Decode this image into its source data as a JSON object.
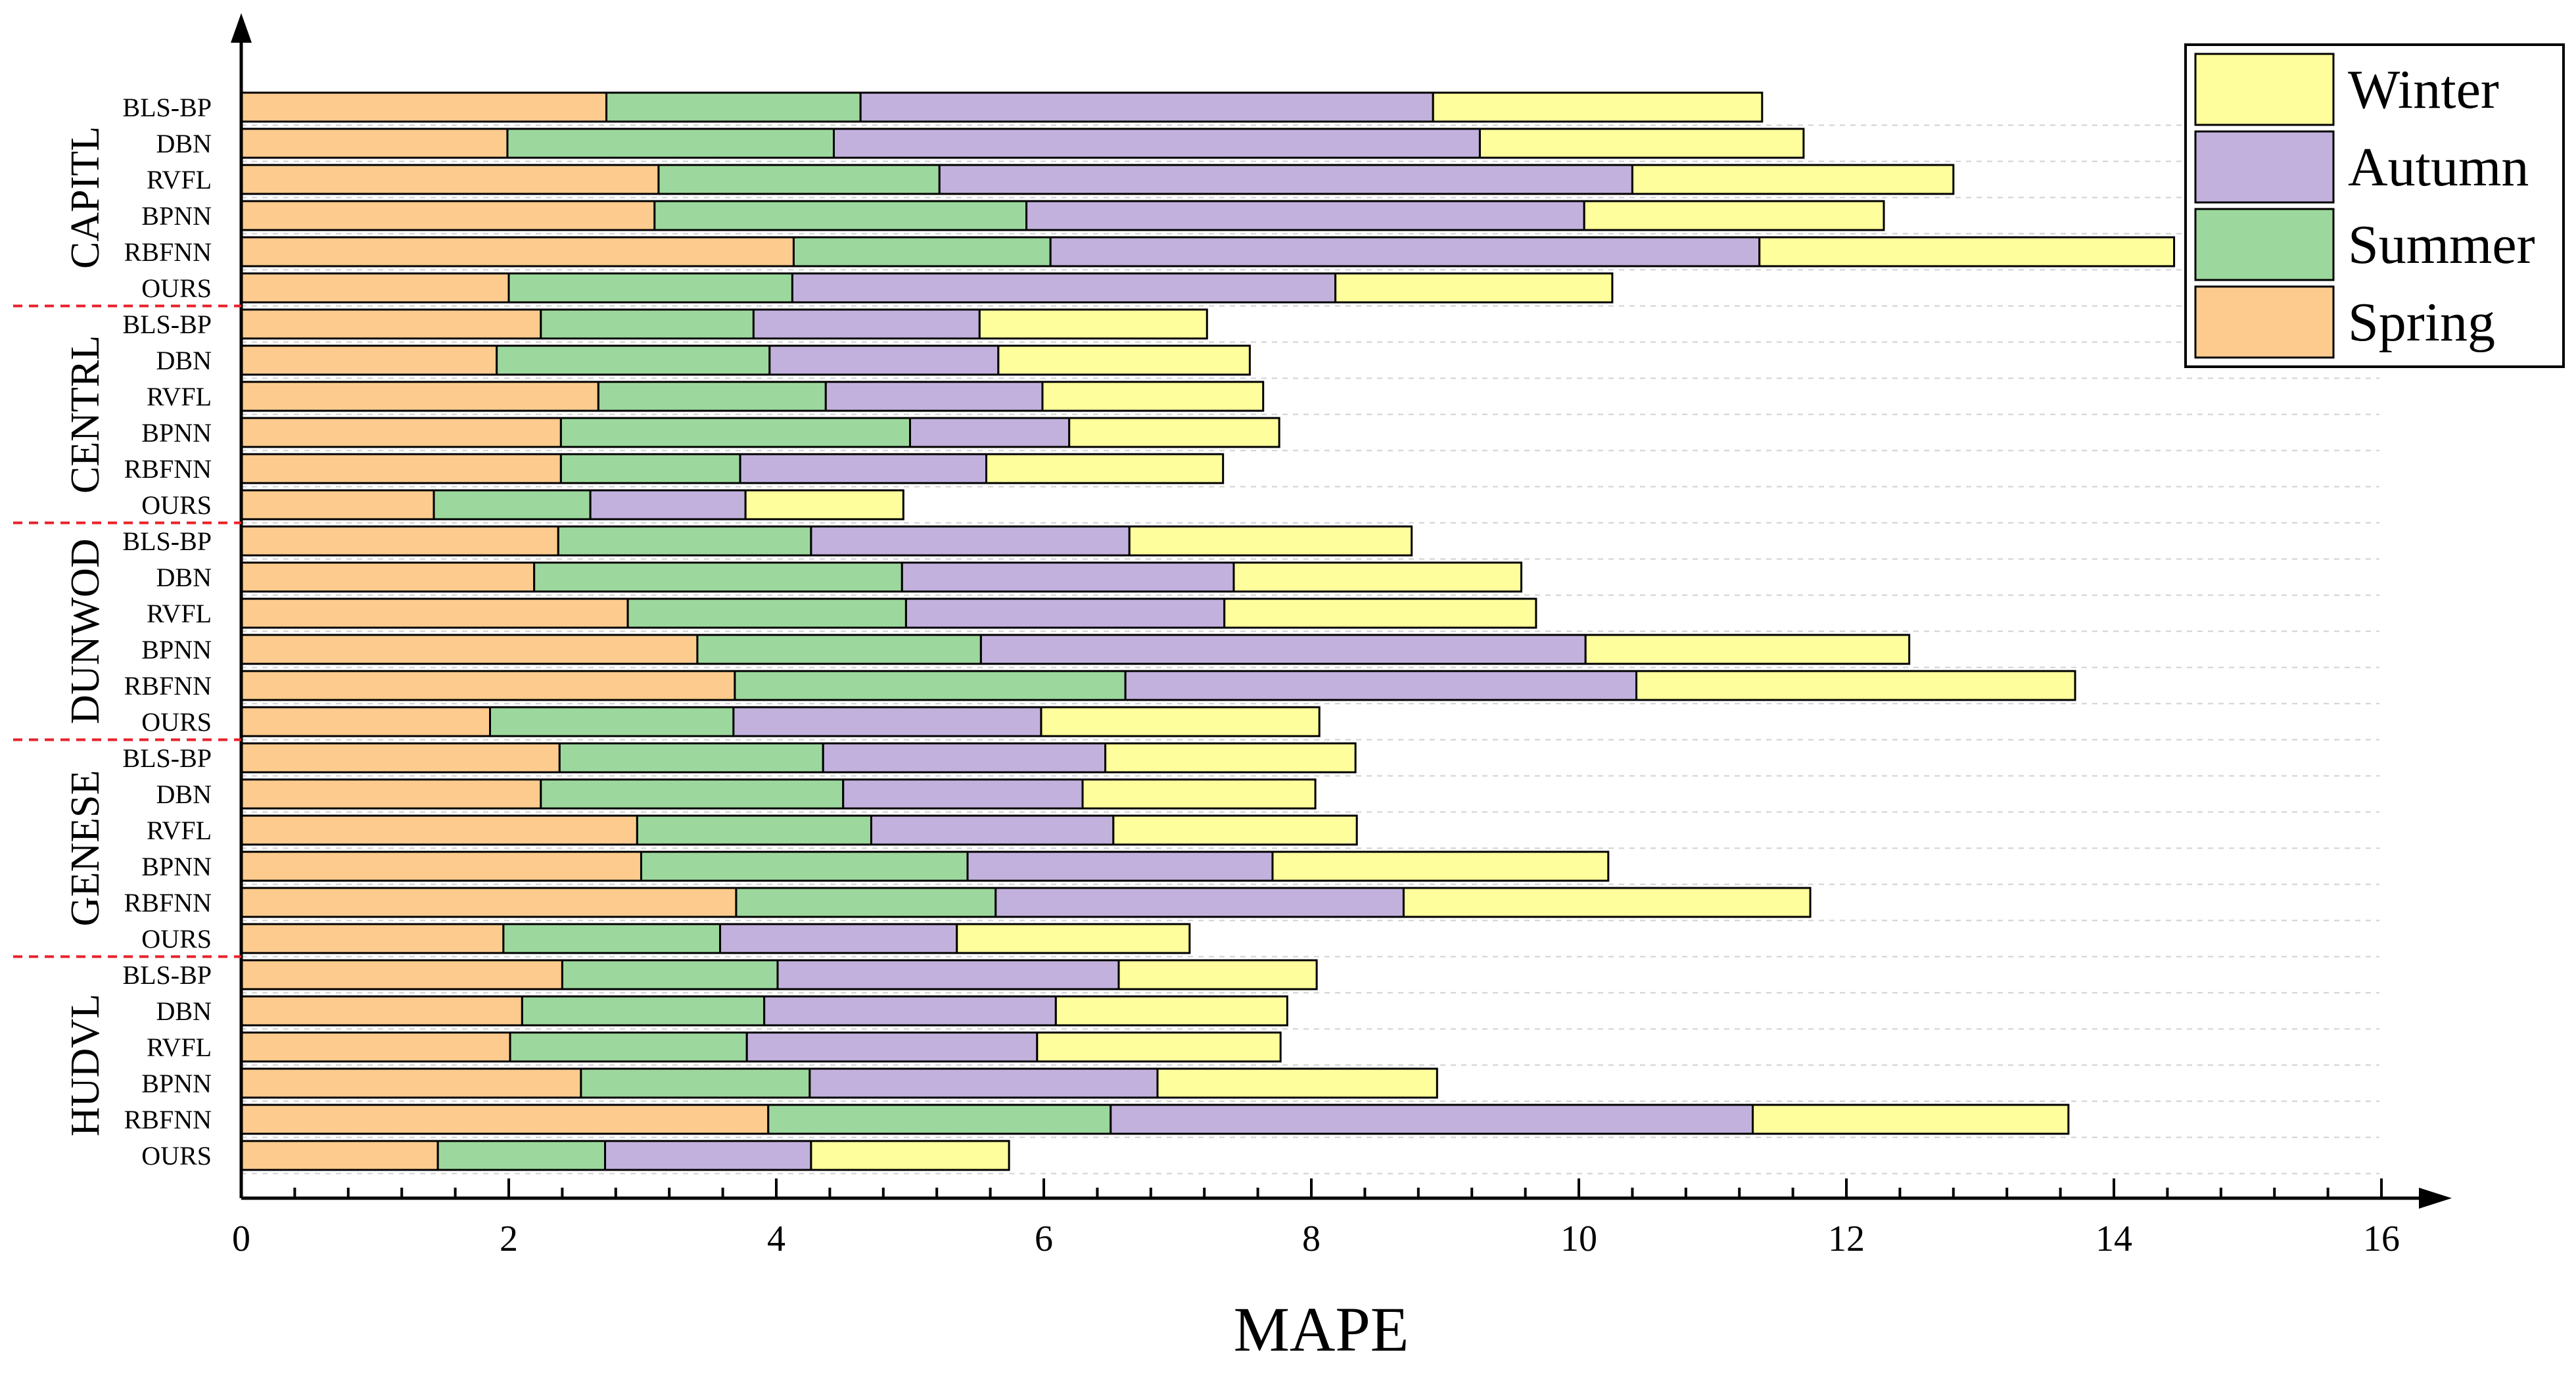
{
  "chart_data": {
    "type": "bar",
    "orientation": "horizontal",
    "stacked": true,
    "xlabel": "MAPE",
    "xlim": [
      0,
      16
    ],
    "xticks": [
      0,
      2,
      4,
      6,
      8,
      10,
      12,
      14,
      16
    ],
    "grid": "horizontal-dashed",
    "legend_position": "top-right",
    "series_names": [
      "Spring",
      "Summer",
      "Autumn",
      "Winter"
    ],
    "series_colors": [
      "#FDCB8E",
      "#9CD89D",
      "#C2B1DD",
      "#FFFE9C"
    ],
    "groups": [
      {
        "name": "CAPITL",
        "rows": [
          {
            "label": "BLS-BP",
            "values": [
              2.73,
              1.9,
              4.28,
              2.46
            ]
          },
          {
            "label": "DBN",
            "values": [
              1.99,
              2.44,
              4.83,
              2.42
            ]
          },
          {
            "label": "RVFL",
            "values": [
              3.12,
              2.1,
              5.18,
              2.4
            ]
          },
          {
            "label": "BPNN",
            "values": [
              3.09,
              2.78,
              4.17,
              2.24
            ]
          },
          {
            "label": "RBFNN",
            "values": [
              4.13,
              1.92,
              5.3,
              3.1
            ]
          },
          {
            "label": "OURS",
            "values": [
              2.0,
              2.12,
              4.06,
              2.07
            ]
          }
        ]
      },
      {
        "name": "CENTRL",
        "rows": [
          {
            "label": "BLS-BP",
            "values": [
              2.24,
              1.59,
              1.69,
              1.7
            ]
          },
          {
            "label": "DBN",
            "values": [
              1.91,
              2.04,
              1.71,
              1.88
            ]
          },
          {
            "label": "RVFL",
            "values": [
              2.67,
              1.7,
              1.62,
              1.65
            ]
          },
          {
            "label": "BPNN",
            "values": [
              2.39,
              2.61,
              1.19,
              1.57
            ]
          },
          {
            "label": "RBFNN",
            "values": [
              2.39,
              1.34,
              1.84,
              1.77
            ]
          },
          {
            "label": "OURS",
            "values": [
              1.44,
              1.17,
              1.16,
              1.18
            ]
          }
        ]
      },
      {
        "name": "DUNWOD",
        "rows": [
          {
            "label": "BLS-BP",
            "values": [
              2.37,
              1.89,
              2.38,
              2.11
            ]
          },
          {
            "label": "DBN",
            "values": [
              2.19,
              2.75,
              2.48,
              2.15
            ]
          },
          {
            "label": "RVFL",
            "values": [
              2.89,
              2.08,
              2.38,
              2.33
            ]
          },
          {
            "label": "BPNN",
            "values": [
              3.41,
              2.12,
              4.52,
              2.42
            ]
          },
          {
            "label": "RBFNN",
            "values": [
              3.69,
              2.92,
              3.82,
              3.28
            ]
          },
          {
            "label": "OURS",
            "values": [
              1.86,
              1.82,
              2.3,
              2.08
            ]
          }
        ]
      },
      {
        "name": "GENESE",
        "rows": [
          {
            "label": "BLS-BP",
            "values": [
              2.38,
              1.97,
              2.11,
              1.87
            ]
          },
          {
            "label": "DBN",
            "values": [
              2.24,
              2.26,
              1.79,
              1.74
            ]
          },
          {
            "label": "RVFL",
            "values": [
              2.96,
              1.75,
              1.81,
              1.82
            ]
          },
          {
            "label": "BPNN",
            "values": [
              2.99,
              2.44,
              2.28,
              2.51
            ]
          },
          {
            "label": "RBFNN",
            "values": [
              3.7,
              1.94,
              3.05,
              3.04
            ]
          },
          {
            "label": "OURS",
            "values": [
              1.96,
              1.62,
              1.77,
              1.74
            ]
          }
        ]
      },
      {
        "name": "HUDVL",
        "rows": [
          {
            "label": "BLS-BP",
            "values": [
              2.4,
              1.61,
              2.55,
              1.48
            ]
          },
          {
            "label": "DBN",
            "values": [
              2.1,
              1.81,
              2.18,
              1.73
            ]
          },
          {
            "label": "RVFL",
            "values": [
              2.01,
              1.77,
              2.17,
              1.82
            ]
          },
          {
            "label": "BPNN",
            "values": [
              2.54,
              1.71,
              2.6,
              2.09
            ]
          },
          {
            "label": "RBFNN",
            "values": [
              3.94,
              2.56,
              4.8,
              2.36
            ]
          },
          {
            "label": "OURS",
            "values": [
              1.47,
              1.25,
              1.54,
              1.48
            ]
          }
        ]
      }
    ]
  }
}
